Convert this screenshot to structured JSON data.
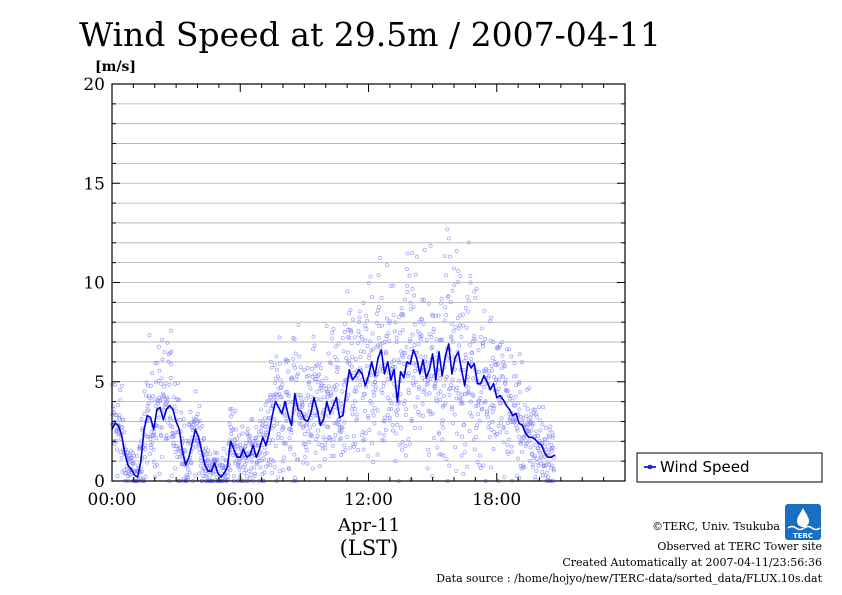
{
  "title": "Wind Speed at 29.5m / 2007-04-11",
  "unit_label": "[m/s]",
  "legend": {
    "label": "Wind Speed",
    "color": "#0000dd"
  },
  "x_axis": {
    "date_label": "Apr-11",
    "tz_label": "(LST)"
  },
  "credits": {
    "org": "©TERC, Univ. Tsukuba",
    "site": "Observed at TERC Tower site",
    "created": "Created Automatically at 2007-04-11/23:56:36",
    "source": "Data source : /home/hojyo/new/TERC-data/sorted_data/FLUX.10s.dat"
  },
  "logo": {
    "text": "TERC",
    "color": "#1a6fc4"
  },
  "chart_data": {
    "type": "line",
    "title": "Wind Speed at 29.5m / 2007-04-11",
    "ylabel": "[m/s]",
    "xlabel": "",
    "x_unit": "hours (LST), Apr-11",
    "xlim": [
      0,
      24
    ],
    "ylim": [
      0,
      20
    ],
    "yticks": [
      0,
      5,
      10,
      15,
      20
    ],
    "xtick_labels": [
      "00:00",
      "06:00",
      "12:00",
      "18:00"
    ],
    "xtick_values": [
      0,
      6,
      12,
      18
    ],
    "grid": true,
    "legend_position": "right",
    "series": [
      {
        "name": "Wind Speed",
        "style": "line (average) with scattered 10-second samples",
        "line_color": "#0000dd",
        "point_color": "#8080ff",
        "x": [
          0.0,
          0.15,
          0.3,
          0.45,
          0.6,
          0.75,
          0.9,
          1.05,
          1.2,
          1.35,
          1.5,
          1.65,
          1.8,
          1.95,
          2.1,
          2.25,
          2.4,
          2.55,
          2.7,
          2.85,
          3.0,
          3.15,
          3.3,
          3.45,
          3.6,
          3.75,
          3.9,
          4.05,
          4.2,
          4.35,
          4.5,
          4.65,
          4.8,
          4.95,
          5.1,
          5.25,
          5.4,
          5.55,
          5.7,
          5.85,
          6.0,
          6.15,
          6.3,
          6.45,
          6.6,
          6.75,
          6.9,
          7.05,
          7.2,
          7.35,
          7.5,
          7.65,
          7.8,
          7.95,
          8.1,
          8.25,
          8.4,
          8.55,
          8.7,
          8.85,
          9.0,
          9.15,
          9.3,
          9.45,
          9.6,
          9.75,
          9.9,
          10.05,
          10.2,
          10.35,
          10.5,
          10.65,
          10.8,
          10.95,
          11.1,
          11.25,
          11.4,
          11.55,
          11.7,
          11.85,
          12.0,
          12.15,
          12.3,
          12.45,
          12.6,
          12.75,
          12.9,
          13.05,
          13.2,
          13.35,
          13.5,
          13.65,
          13.8,
          13.95,
          14.1,
          14.25,
          14.4,
          14.55,
          14.7,
          14.85,
          15.0,
          15.15,
          15.3,
          15.45,
          15.6,
          15.75,
          15.9,
          16.05,
          16.2,
          16.35,
          16.5,
          16.65,
          16.8,
          16.95,
          17.1,
          17.25,
          17.4,
          17.55,
          17.7,
          17.85,
          18.0,
          18.15,
          18.3,
          18.45,
          18.6,
          18.75,
          18.9,
          19.05,
          19.2,
          19.35,
          19.5,
          19.65,
          19.8,
          19.95,
          20.1,
          20.25,
          20.4,
          20.55,
          20.7
        ],
        "values": [
          2.6,
          2.9,
          2.8,
          2.3,
          1.4,
          0.8,
          0.6,
          0.3,
          0.2,
          1.0,
          2.6,
          3.3,
          3.2,
          2.6,
          3.6,
          3.7,
          3.1,
          3.6,
          3.8,
          3.6,
          3.0,
          2.6,
          1.5,
          0.8,
          1.2,
          1.9,
          2.6,
          2.2,
          1.5,
          0.8,
          0.5,
          0.5,
          0.9,
          0.4,
          0.2,
          0.4,
          0.7,
          2.0,
          1.6,
          1.2,
          1.2,
          1.6,
          1.2,
          1.3,
          1.8,
          1.2,
          1.6,
          2.2,
          1.8,
          2.4,
          3.3,
          4.0,
          3.7,
          3.4,
          4.0,
          3.3,
          2.8,
          4.4,
          3.6,
          3.5,
          3.1,
          3.0,
          3.4,
          4.2,
          3.6,
          2.8,
          3.1,
          4.0,
          3.4,
          3.8,
          4.2,
          3.2,
          3.3,
          4.5,
          5.6,
          5.1,
          5.3,
          5.6,
          5.4,
          4.8,
          5.3,
          6.0,
          5.3,
          6.2,
          6.6,
          5.4,
          6.0,
          5.1,
          5.6,
          4.0,
          5.5,
          5.2,
          6.0,
          5.9,
          6.6,
          6.2,
          5.4,
          6.1,
          5.2,
          5.6,
          6.4,
          5.1,
          6.5,
          5.3,
          6.3,
          6.9,
          5.4,
          6.2,
          6.5,
          5.6,
          4.8,
          6.0,
          5.7,
          5.9,
          4.9,
          4.9,
          5.3,
          5.0,
          4.6,
          4.9,
          4.2,
          4.3,
          4.1,
          3.8,
          3.6,
          3.3,
          3.4,
          2.9,
          2.8,
          2.4,
          2.2,
          2.2,
          2.1,
          1.9,
          1.8,
          1.4,
          1.2,
          1.2,
          1.3
        ]
      }
    ]
  }
}
